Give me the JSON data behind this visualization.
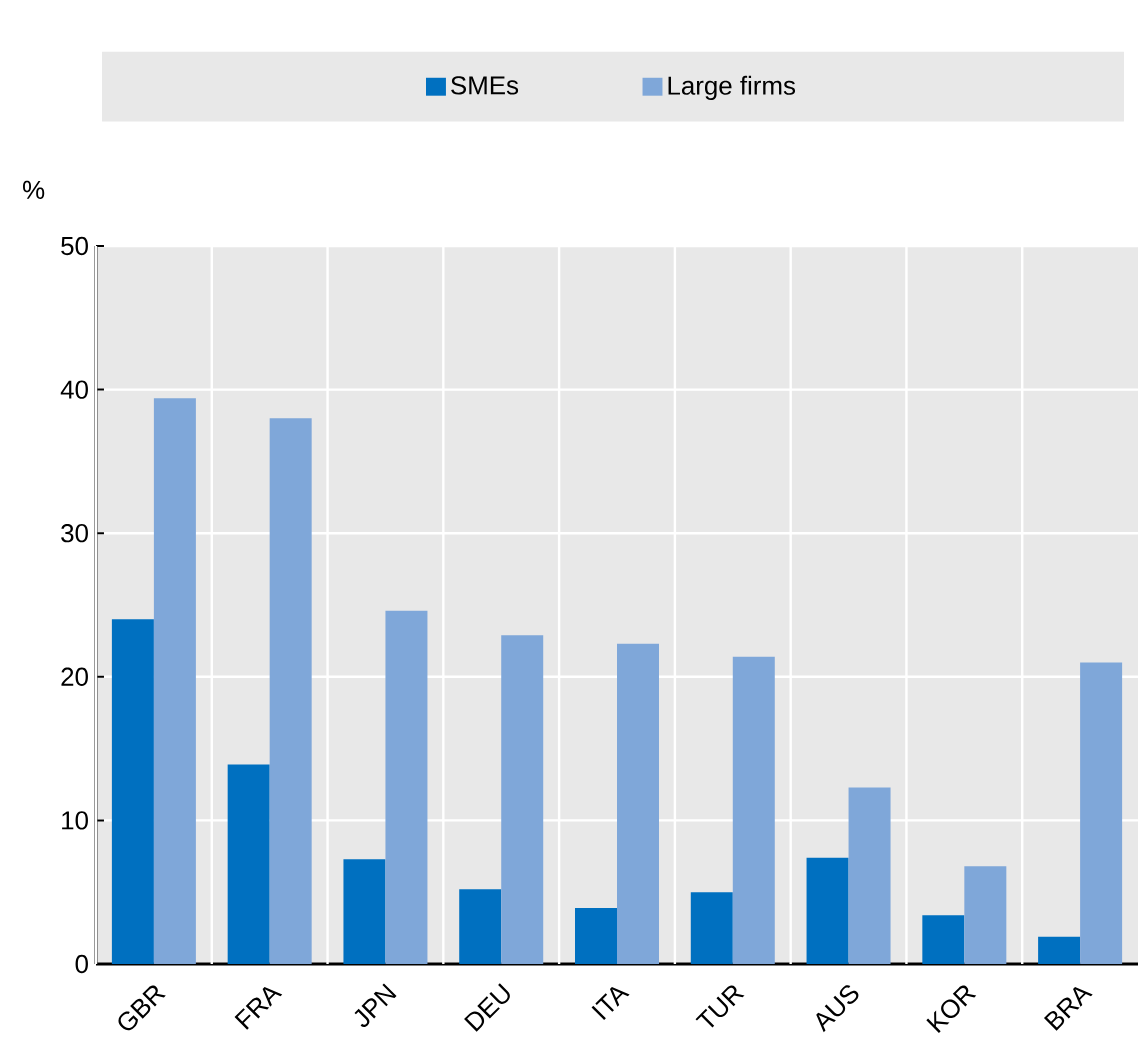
{
  "chart_data": {
    "type": "bar",
    "ylabel": "%",
    "categories": [
      "GBR",
      "FRA",
      "JPN",
      "DEU",
      "ITA",
      "TUR",
      "AUS",
      "KOR",
      "BRA"
    ],
    "series": [
      {
        "name": "SMEs",
        "color": "#0070c0",
        "values": [
          24.0,
          13.9,
          7.3,
          5.2,
          3.9,
          5.0,
          7.4,
          3.4,
          1.9
        ]
      },
      {
        "name": "Large firms",
        "color": "#7fa7d9",
        "values": [
          39.4,
          38.0,
          24.6,
          22.9,
          22.3,
          21.4,
          12.3,
          6.8,
          21.0
        ]
      }
    ],
    "ylim": [
      0,
      50
    ],
    "yticks": [
      0,
      10,
      20,
      30,
      40,
      50
    ],
    "grid": true,
    "legend": "top"
  }
}
